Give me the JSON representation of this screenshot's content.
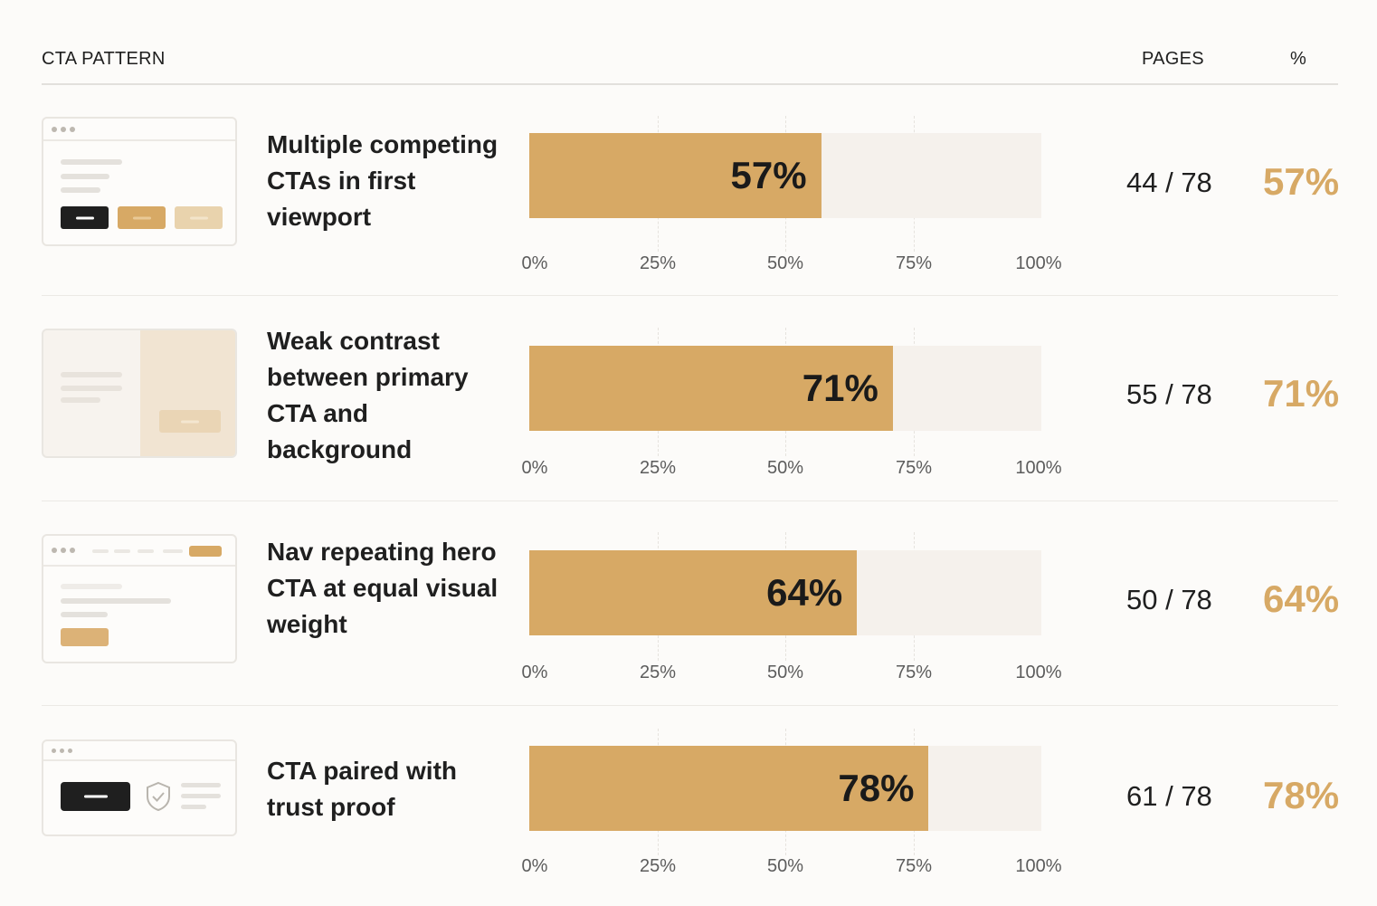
{
  "header": {
    "pattern": "CTA PATTERN",
    "pages": "PAGES",
    "percent": "%"
  },
  "colors": {
    "accent": "#d7a965",
    "track": "#f5f1ec",
    "dark": "#1f1f1f"
  },
  "chart_data": {
    "type": "bar",
    "orientation": "horizontal",
    "title": "",
    "categories": [
      "Multiple competing CTAs in first viewport",
      "Weak contrast between primary CTA and background",
      "Nav repeating hero CTA at equal visual weight",
      "CTA paired with trust proof"
    ],
    "values": [
      57,
      71,
      64,
      78
    ],
    "xlim": [
      0,
      100
    ],
    "xticks": [
      "0%",
      "25%",
      "50%",
      "75%",
      "100%"
    ],
    "grid": true,
    "legend": "none"
  },
  "rows": [
    {
      "label": "Multiple competing CTAs in first viewport",
      "value": 57,
      "value_label": "57%",
      "pages": "44 / 78",
      "pct": "57%",
      "thumb_icon": "multi-cta-wireframe-icon"
    },
    {
      "label": "Weak contrast between primary CTA and background",
      "value": 71,
      "value_label": "71%",
      "pages": "55 / 78",
      "pct": "71%",
      "thumb_icon": "low-contrast-wireframe-icon"
    },
    {
      "label": "Nav repeating hero CTA at equal visual weight",
      "value": 64,
      "value_label": "64%",
      "pages": "50 / 78",
      "pct": "64%",
      "thumb_icon": "nav-cta-wireframe-icon"
    },
    {
      "label": "CTA paired with trust proof",
      "value": 78,
      "value_label": "78%",
      "pages": "61 / 78",
      "pct": "78%",
      "thumb_icon": "trust-proof-wireframe-icon"
    }
  ]
}
